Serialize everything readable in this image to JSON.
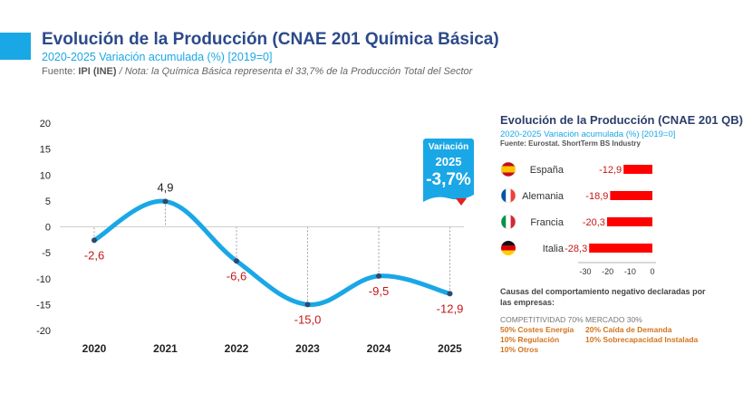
{
  "header": {
    "title": "Evolución de la Producción (CNAE 201 Química Básica)",
    "subtitle": "2020-2025 Variación acumulada (%) [2019=0]",
    "source_prefix": "Fuente: ",
    "source_bold": "IPI (INE)",
    "source_note": " / Nota: la Química Básica representa el 33,7% de la Producción Total del Sector"
  },
  "badge": {
    "line1": "Variación",
    "line2": "2025",
    "value": "-3,7%"
  },
  "colors": {
    "accent": "#1aa7e6",
    "title": "#2c4a8a",
    "negative": "#c41818",
    "bar": "#ff0000",
    "orange": "#d3741c"
  },
  "chart_data": [
    {
      "type": "line",
      "title": "Evolución de la Producción (CNAE 201 Química Básica)",
      "subtitle": "2020-2025 Variación acumulada (%) [2019=0]",
      "categories": [
        "2020",
        "2021",
        "2022",
        "2023",
        "2024",
        "2025"
      ],
      "values": [
        -2.6,
        4.9,
        -6.6,
        -15.0,
        -9.5,
        -12.9
      ],
      "data_labels": [
        "-2,6",
        "4,9",
        "-6,6",
        "-15,0",
        "-9,5",
        "-12,9"
      ],
      "ylim": [
        -20,
        20
      ],
      "yticks": [
        20,
        15,
        10,
        5,
        0,
        -5,
        -10,
        -15,
        -20
      ],
      "xlabel": "",
      "ylabel": "",
      "smooth": true
    },
    {
      "type": "bar",
      "orientation": "horizontal",
      "title": "Evolución de la Producción (CNAE 201 QB)",
      "subtitle": "2020-2025 Variación acumulada (%) [2019=0]",
      "source": "Fuente: Eurostat. ShortTerm BS Industry",
      "categories": [
        "España",
        "Alemania",
        "Francia",
        "Italia"
      ],
      "values": [
        -12.9,
        -18.9,
        -20.3,
        -28.3
      ],
      "data_labels": [
        "-12,9",
        "-18,9",
        "-20,3",
        "-28,3"
      ],
      "xlim": [
        -30,
        0
      ],
      "xticks": [
        -30,
        -20,
        -10,
        0
      ]
    }
  ],
  "causes": {
    "title": "Causas del comportamiento negativo declaradas por las empresas:",
    "competitividad": {
      "header": "COMPETITIVIDAD 70%",
      "items": [
        "50% Costes Energía",
        "10% Regulación",
        "10% Otros"
      ]
    },
    "mercado": {
      "header": "MERCADO 30%",
      "items": [
        "20% Caída de Demanda",
        "10% Sobrecapacidad Instalada"
      ]
    }
  }
}
